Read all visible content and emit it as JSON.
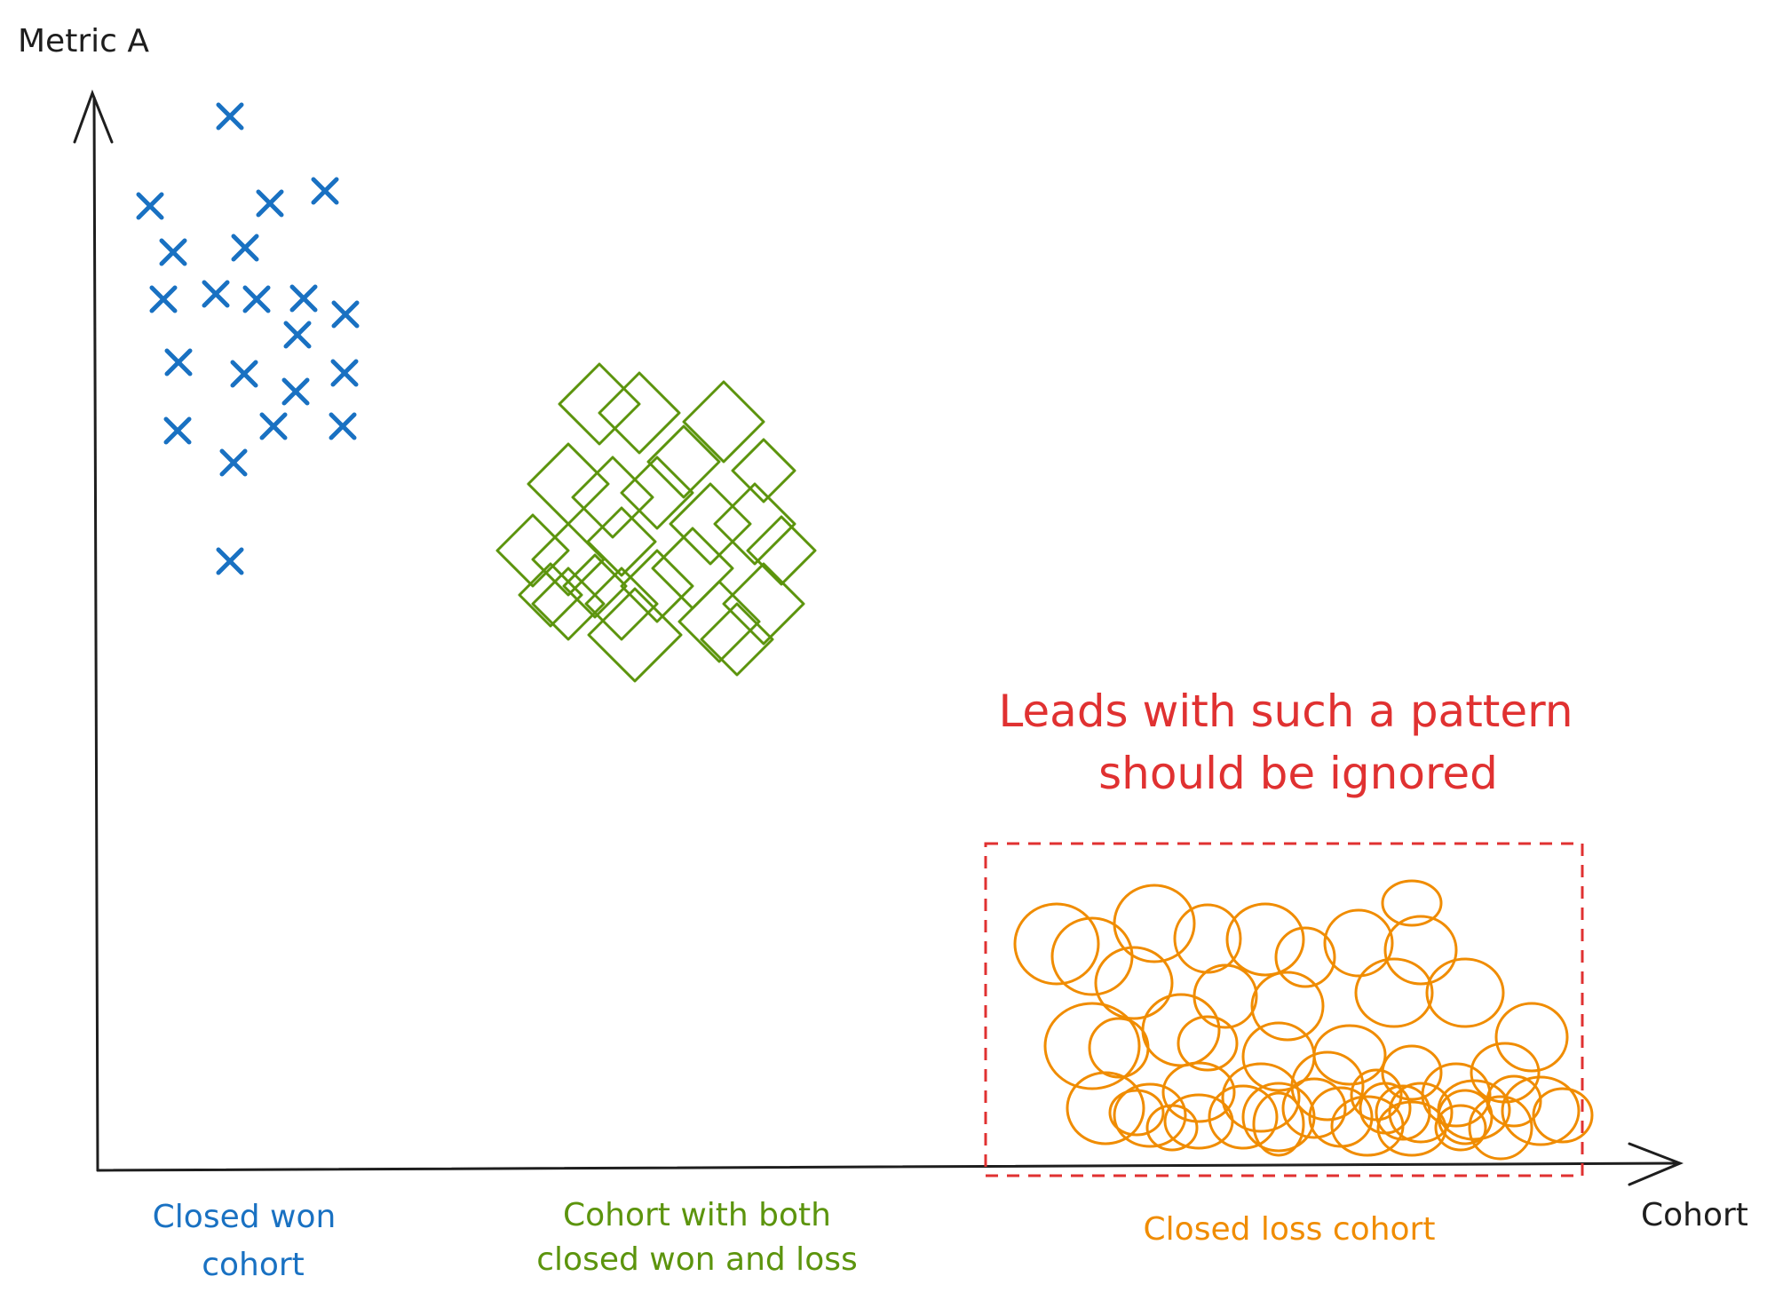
{
  "colors": {
    "ink": "#1e1e1e",
    "won": "#1971c2",
    "mixed": "#2f9e44",
    "mixed_stroke": "#5c940d",
    "loss": "#e8590c",
    "loss_stroke": "#f08c00",
    "warning": "#e03131"
  },
  "axes": {
    "y_label": "Metric A",
    "x_label": "Cohort"
  },
  "cohorts": {
    "won": {
      "label_line1": "Closed won",
      "label_line2": "cohort",
      "marker": "x-icon"
    },
    "mixed": {
      "label_line1": "Cohort with both",
      "label_line2": "closed won and loss",
      "marker": "diamond-icon"
    },
    "loss": {
      "label_line1": "Closed loss cohort",
      "marker": "circle-icon"
    }
  },
  "note": {
    "line1": "Leads with such a pattern",
    "line2": "should be ignored"
  }
}
